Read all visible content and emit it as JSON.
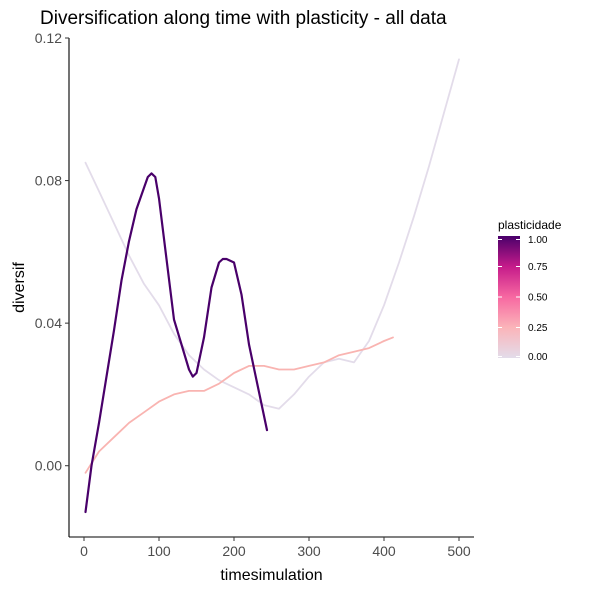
{
  "chart_data": {
    "type": "line",
    "title": "Diversification along time with plasticity - all data",
    "xlabel": "timesimulation",
    "ylabel": "diversif",
    "xlim": [
      -20,
      520
    ],
    "ylim": [
      -0.02,
      0.12
    ],
    "x_ticks": [
      0,
      100,
      200,
      300,
      400,
      500
    ],
    "x_tick_labels": [
      "0",
      "100",
      "200",
      "300",
      "400",
      "500"
    ],
    "y_ticks": [
      0.0,
      0.04,
      0.08,
      0.12
    ],
    "y_tick_labels": [
      "0.00",
      "0.04",
      "0.08",
      "0.12"
    ],
    "grid": false,
    "legend": {
      "title": "plasticidade",
      "position": "right",
      "type": "colorbar",
      "range": [
        0,
        1
      ],
      "ticks": [
        0,
        0.25,
        0.5,
        0.75,
        1.0
      ],
      "tick_labels": [
        "0.00",
        "0.25",
        "0.50",
        "0.75",
        "1.00"
      ],
      "gradient_colors": [
        "#e3dcea",
        "#fbb4b9",
        "#f768a1",
        "#c51b8a",
        "#49006a"
      ]
    },
    "series": [
      {
        "plasticity": 0.0,
        "color": "#e3dcea",
        "x": [
          2,
          20,
          40,
          60,
          80,
          100,
          120,
          140,
          160,
          180,
          200,
          220,
          240,
          260,
          280,
          300,
          320,
          340,
          360,
          380,
          400,
          420,
          440,
          460,
          480,
          500
        ],
        "y": [
          0.085,
          0.077,
          0.068,
          0.059,
          0.051,
          0.045,
          0.037,
          0.031,
          0.027,
          0.024,
          0.022,
          0.02,
          0.017,
          0.016,
          0.02,
          0.025,
          0.029,
          0.03,
          0.029,
          0.035,
          0.045,
          0.057,
          0.07,
          0.084,
          0.099,
          0.114
        ]
      },
      {
        "plasticity": 0.25,
        "color": "#f9b4b1",
        "x": [
          2,
          20,
          40,
          60,
          80,
          100,
          120,
          140,
          160,
          180,
          200,
          220,
          240,
          260,
          280,
          300,
          320,
          340,
          360,
          380,
          400,
          412
        ],
        "y": [
          -0.002,
          0.004,
          0.008,
          0.012,
          0.015,
          0.018,
          0.02,
          0.021,
          0.021,
          0.023,
          0.026,
          0.028,
          0.028,
          0.027,
          0.027,
          0.028,
          0.029,
          0.031,
          0.032,
          0.033,
          0.035,
          0.036
        ]
      },
      {
        "plasticity": 1.0,
        "color": "#49006a",
        "x": [
          2,
          10,
          20,
          30,
          40,
          50,
          60,
          70,
          80,
          85,
          90,
          95,
          100,
          110,
          120,
          130,
          140,
          145,
          150,
          160,
          170,
          180,
          185,
          190,
          200,
          210,
          220,
          230,
          244
        ],
        "y": [
          -0.013,
          0.0,
          0.012,
          0.025,
          0.038,
          0.052,
          0.063,
          0.072,
          0.078,
          0.081,
          0.082,
          0.081,
          0.075,
          0.058,
          0.041,
          0.034,
          0.027,
          0.025,
          0.026,
          0.036,
          0.05,
          0.057,
          0.058,
          0.058,
          0.057,
          0.048,
          0.034,
          0.024,
          0.01
        ]
      }
    ]
  }
}
